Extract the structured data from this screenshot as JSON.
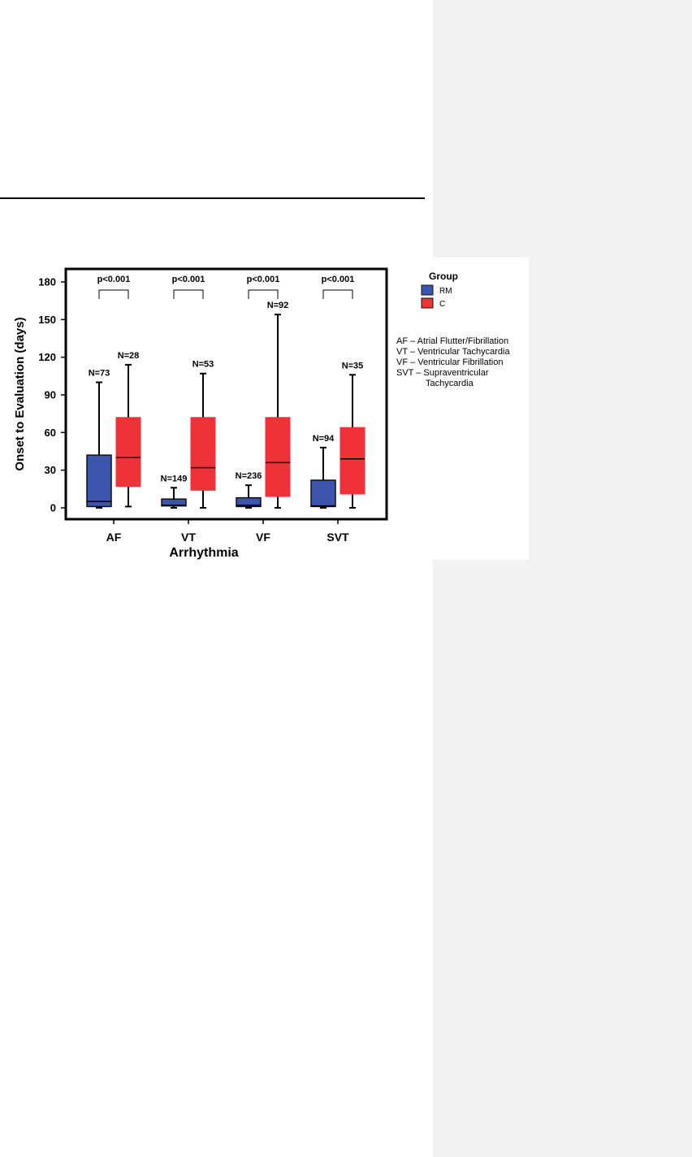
{
  "chart_data": {
    "type": "box",
    "xlabel": "Arrhythmia",
    "ylabel": "Onset to Evaluation (days)",
    "ylim": [
      -8,
      190
    ],
    "yticks": [
      0,
      30,
      60,
      90,
      120,
      150,
      180
    ],
    "categories": [
      "AF",
      "VT",
      "VF",
      "SVT"
    ],
    "legend": {
      "title": "Group",
      "placement": "top-right, outside plot",
      "entries": [
        {
          "name": "RM",
          "color": "#3b55ad"
        },
        {
          "name": "C",
          "color": "#ee3238"
        }
      ]
    },
    "series": [
      {
        "name": "RM",
        "color": "#3b55ad",
        "boxes": [
          {
            "category": "AF",
            "n_label": "N=73",
            "min": 0,
            "q1": 1,
            "median": 5,
            "q3": 42,
            "max": 100
          },
          {
            "category": "VT",
            "n_label": "N=149",
            "min": 0,
            "q1": 1.5,
            "median": 2,
            "q3": 7,
            "max": 16
          },
          {
            "category": "VF",
            "n_label": "N=236",
            "min": 0,
            "q1": 1,
            "median": 2,
            "q3": 8,
            "max": 18
          },
          {
            "category": "SVT",
            "n_label": "N=94",
            "min": 0,
            "q1": 1,
            "median": 1.5,
            "q3": 22,
            "max": 48
          }
        ]
      },
      {
        "name": "C",
        "color": "#ee3238",
        "boxes": [
          {
            "category": "AF",
            "n_label": "N=28",
            "min": 1,
            "q1": 17,
            "median": 40,
            "q3": 72,
            "max": 114
          },
          {
            "category": "VT",
            "n_label": "N=53",
            "min": 0,
            "q1": 14,
            "median": 32,
            "q3": 72,
            "max": 107
          },
          {
            "category": "VF",
            "n_label": "N=92",
            "min": 0,
            "q1": 9,
            "median": 36,
            "q3": 72,
            "max": 154
          },
          {
            "category": "SVT",
            "n_label": "N=35",
            "min": 0,
            "q1": 11,
            "median": 39,
            "q3": 64,
            "max": 106
          }
        ]
      }
    ],
    "annotations": [
      {
        "category": "AF",
        "text": "p<0.001"
      },
      {
        "category": "VT",
        "text": "p<0.001"
      },
      {
        "category": "VF",
        "text": "p<0.001"
      },
      {
        "category": "SVT",
        "text": "p<0.001"
      }
    ],
    "notes": [
      {
        "abbr": "AF",
        "text": "AF – Atrial Flutter/Fibrillation"
      },
      {
        "abbr": "VT",
        "text": "VT – Ventricular Tachycardia"
      },
      {
        "abbr": "VF",
        "text": "VF – Ventricular Fibrillation"
      },
      {
        "abbr": "SVT",
        "text": "SVT – Supraventricular",
        "continuation": "Tachycardia"
      }
    ]
  }
}
